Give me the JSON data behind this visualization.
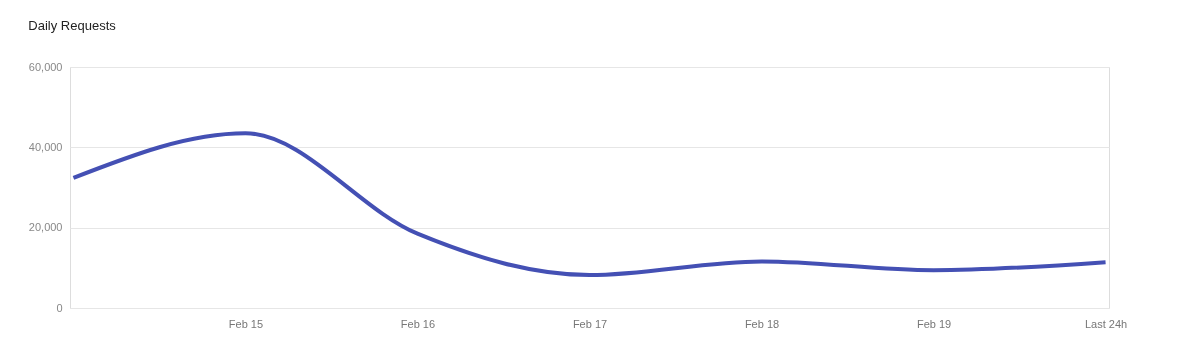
{
  "chart_data": {
    "type": "line",
    "title": "Daily Requests",
    "categories": [
      null,
      "Feb 15",
      "Feb 16",
      "Feb 17",
      "Feb 18",
      "Feb 19",
      "Last 24h"
    ],
    "series": [
      {
        "color": "#4450b4",
        "values": [
          32400,
          43500,
          18500,
          8200,
          11600,
          9400,
          11400
        ]
      }
    ],
    "ylim": [
      0,
      60000
    ],
    "yticks": [
      0,
      {
        "value": 20000,
        "label": "20,000"
      },
      {
        "value": 40000,
        "label": "40,000"
      },
      {
        "value": 60000,
        "label": "60,000"
      }
    ],
    "grid": "y",
    "marker": "none",
    "line_style": "solid"
  }
}
